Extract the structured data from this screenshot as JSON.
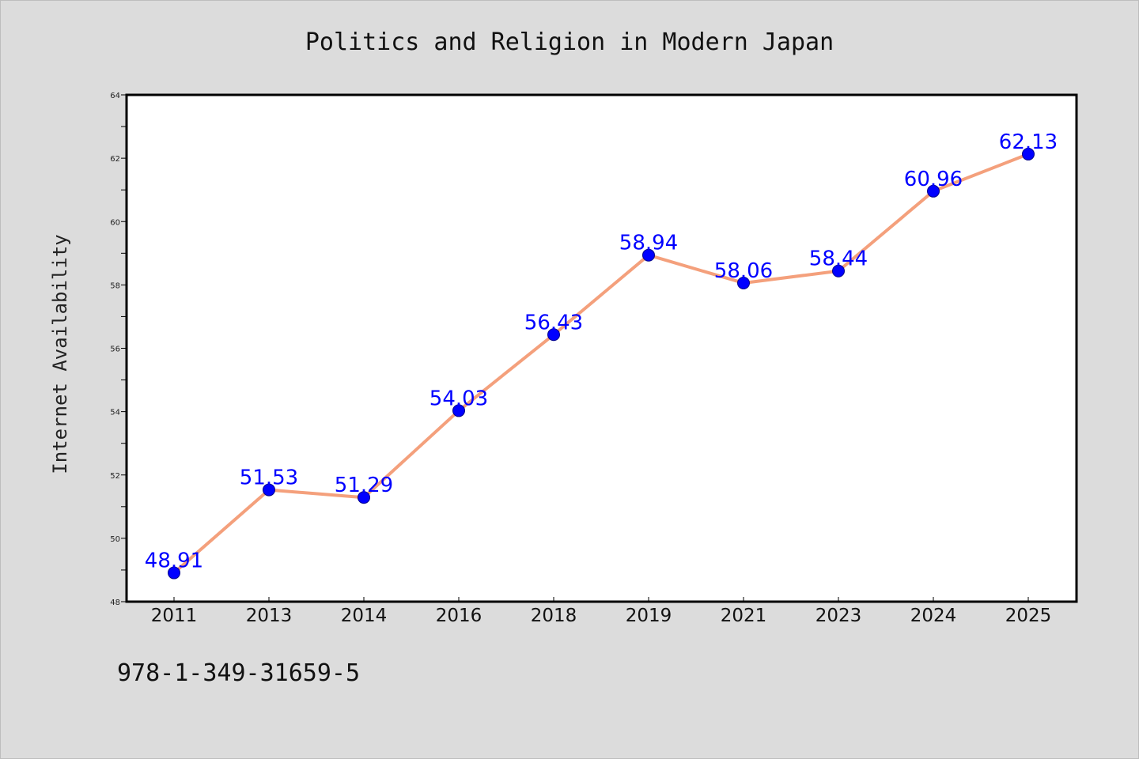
{
  "chart_data": {
    "type": "line",
    "title": "Politics and Religion in Modern Japan",
    "xlabel": "",
    "ylabel": "Internet Availability",
    "categories": [
      "2011",
      "2013",
      "2014",
      "2016",
      "2018",
      "2019",
      "2021",
      "2023",
      "2024",
      "2025"
    ],
    "series": [
      {
        "values": [
          48.91,
          51.53,
          51.29,
          54.03,
          56.43,
          58.94,
          58.06,
          58.44,
          60.96,
          62.13
        ],
        "data_labels": [
          "48.91",
          "51.53",
          "51.29",
          "54.03",
          "56.43",
          "58.94",
          "58.06",
          "58.44",
          "60.96",
          "62.13"
        ],
        "line_color": "#f4a07c",
        "marker_color": "#0000ff"
      }
    ],
    "ylim": [
      48,
      64
    ],
    "yticks": [
      "48",
      "50",
      "52",
      "54",
      "56",
      "58",
      "60",
      "62",
      "64"
    ],
    "grid": false,
    "legend": "none"
  },
  "footer": {
    "isbn": "978-1-349-31659-5"
  },
  "colors": {
    "background": "#dcdcdc",
    "plot_background": "#ffffff",
    "axis": "#000000"
  }
}
